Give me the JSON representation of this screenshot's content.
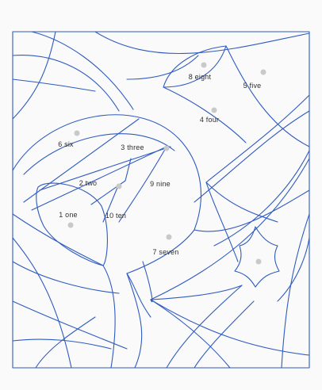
{
  "puzzle": {
    "line_color": "#2f5bc0",
    "dot_color": "#c9c9c9",
    "regions": [
      {
        "id": "one",
        "label": "1 one"
      },
      {
        "id": "two",
        "label": "2 two"
      },
      {
        "id": "three",
        "label": "3 three"
      },
      {
        "id": "four",
        "label": "4 four"
      },
      {
        "id": "five",
        "label": "5 five"
      },
      {
        "id": "six",
        "label": "6 six"
      },
      {
        "id": "seven",
        "label": "7 seven"
      },
      {
        "id": "eight",
        "label": "8 eight"
      },
      {
        "id": "nine",
        "label": "9 nine"
      },
      {
        "id": "ten",
        "label": "10 ten"
      }
    ]
  }
}
